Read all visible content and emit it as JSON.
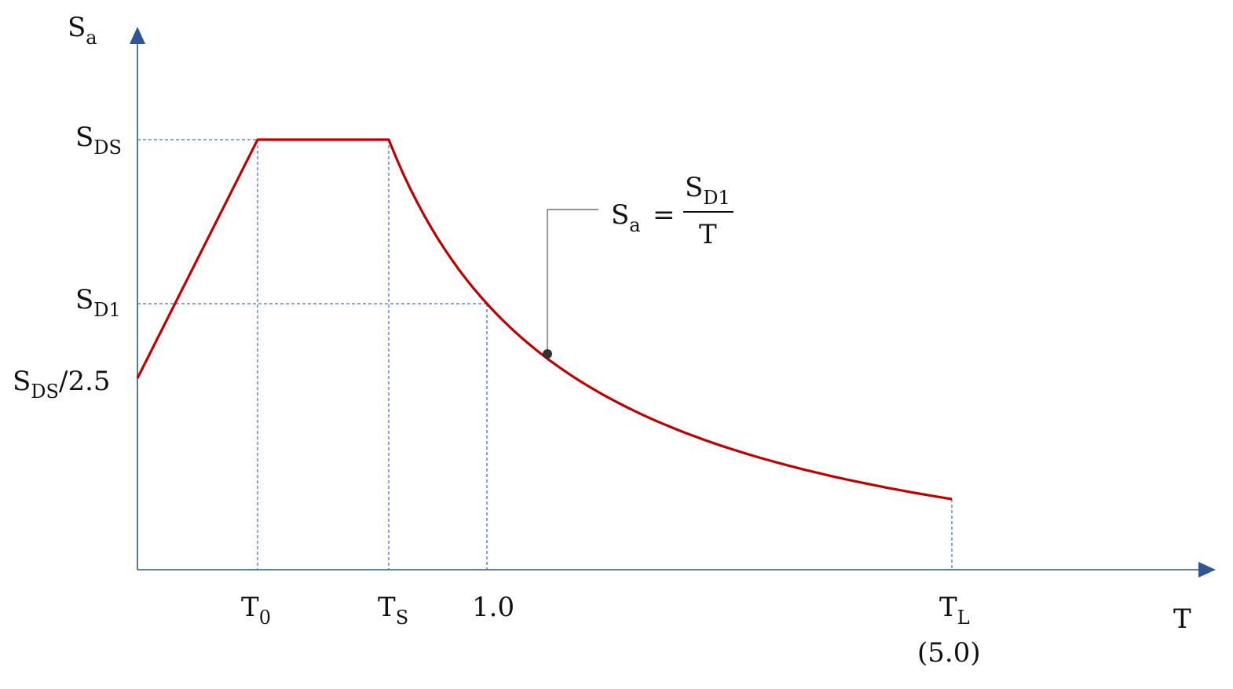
{
  "chart_data": {
    "type": "line",
    "title": "",
    "xlabel": "T",
    "ylabel": "Sa",
    "x_ticks": [
      {
        "main": "T",
        "sub": "0"
      },
      {
        "main": "T",
        "sub": "S"
      },
      {
        "main": "1.0",
        "sub": ""
      },
      {
        "main": "T",
        "sub": "L",
        "line2": "(5.0)"
      }
    ],
    "y_ticks": [
      {
        "main": "S",
        "sub": "DS",
        "tail": ""
      },
      {
        "main": "S",
        "sub": "D1",
        "tail": ""
      },
      {
        "main": "S",
        "sub": "DS",
        "tail": "/2.5"
      }
    ],
    "y_axis_label": {
      "main": "S",
      "sub": "a"
    },
    "x_axis_label": "T",
    "annotation": {
      "lhs_main": "S",
      "lhs_sub": "a",
      "equals": "=",
      "num_main": "S",
      "num_sub": "D1",
      "den": "T"
    },
    "series": [
      {
        "segments": [
          {
            "region": "linear-rise",
            "x": [
              0,
              0.2
            ],
            "y": [
              0.4,
              1.0
            ]
          },
          {
            "region": "plateau",
            "x": [
              0.2,
              0.5
            ],
            "y": [
              1.0,
              1.0
            ]
          },
          {
            "region": "descending",
            "formula": "S_D1 / T",
            "x_range": [
              0.5,
              5.0
            ]
          }
        ]
      }
    ],
    "values": {
      "S_DS": 1.0,
      "S_D1": 0.5,
      "T0": 0.2,
      "TS": 0.5,
      "TL": 5.0
    },
    "grid": false,
    "colors": {
      "curve": "#c00000",
      "axis": "#2f5597",
      "guide": "#4472c4"
    }
  }
}
